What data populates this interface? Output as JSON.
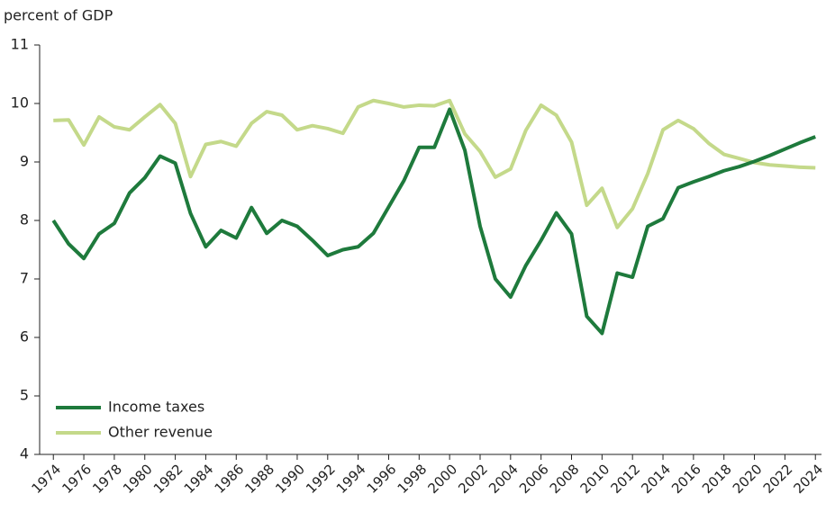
{
  "chart_data": {
    "type": "line",
    "y_label": "percent of GDP",
    "x": [
      1974,
      1975,
      1976,
      1977,
      1978,
      1979,
      1980,
      1981,
      1982,
      1983,
      1984,
      1985,
      1986,
      1987,
      1988,
      1989,
      1990,
      1991,
      1992,
      1993,
      1994,
      1995,
      1996,
      1997,
      1998,
      1999,
      2000,
      2001,
      2002,
      2003,
      2004,
      2005,
      2006,
      2007,
      2008,
      2009,
      2010,
      2011,
      2012,
      2013,
      2014,
      2015,
      2016,
      2017,
      2018,
      2019,
      2020,
      2021,
      2022,
      2023,
      2024
    ],
    "series": [
      {
        "name": "Income taxes",
        "color": "#1e7a3c",
        "values": [
          8.0,
          7.6,
          7.35,
          7.77,
          7.95,
          8.47,
          8.73,
          9.1,
          8.98,
          8.12,
          7.55,
          7.83,
          7.7,
          8.22,
          7.78,
          8.0,
          7.9,
          7.66,
          7.4,
          7.5,
          7.55,
          7.78,
          8.23,
          8.68,
          9.25,
          9.25,
          9.9,
          9.2,
          7.9,
          7.0,
          6.69,
          7.23,
          7.66,
          8.13,
          7.77,
          6.36,
          6.07,
          7.1,
          7.03,
          7.9,
          8.03,
          8.56,
          8.66,
          8.75,
          8.85,
          8.92,
          9.01,
          9.11,
          9.22,
          9.33,
          9.43
        ]
      },
      {
        "name": "Other revenue",
        "color": "#c4d98a",
        "values": [
          9.71,
          9.72,
          9.29,
          9.77,
          9.6,
          9.55,
          9.77,
          9.98,
          9.66,
          8.75,
          9.3,
          9.35,
          9.27,
          9.66,
          9.86,
          9.8,
          9.55,
          9.62,
          9.57,
          9.49,
          9.94,
          10.05,
          10.0,
          9.94,
          9.97,
          9.96,
          10.05,
          9.48,
          9.18,
          8.74,
          8.88,
          9.54,
          9.97,
          9.8,
          9.34,
          8.26,
          8.55,
          7.88,
          8.2,
          8.8,
          9.55,
          9.71,
          9.57,
          9.32,
          9.13,
          9.06,
          8.99,
          8.95,
          8.93,
          8.91,
          8.9
        ]
      }
    ],
    "xlim": [
      1973.1,
      2024.4
    ],
    "xticks": [
      1974,
      1976,
      1978,
      1980,
      1982,
      1984,
      1986,
      1988,
      1990,
      1992,
      1994,
      1996,
      1998,
      2000,
      2002,
      2004,
      2006,
      2008,
      2010,
      2012,
      2014,
      2016,
      2018,
      2020,
      2022,
      2024
    ],
    "ylim": [
      4,
      11
    ],
    "yticks": [
      4,
      5,
      6,
      7,
      8,
      9,
      10,
      11
    ],
    "legend": "lower left"
  }
}
